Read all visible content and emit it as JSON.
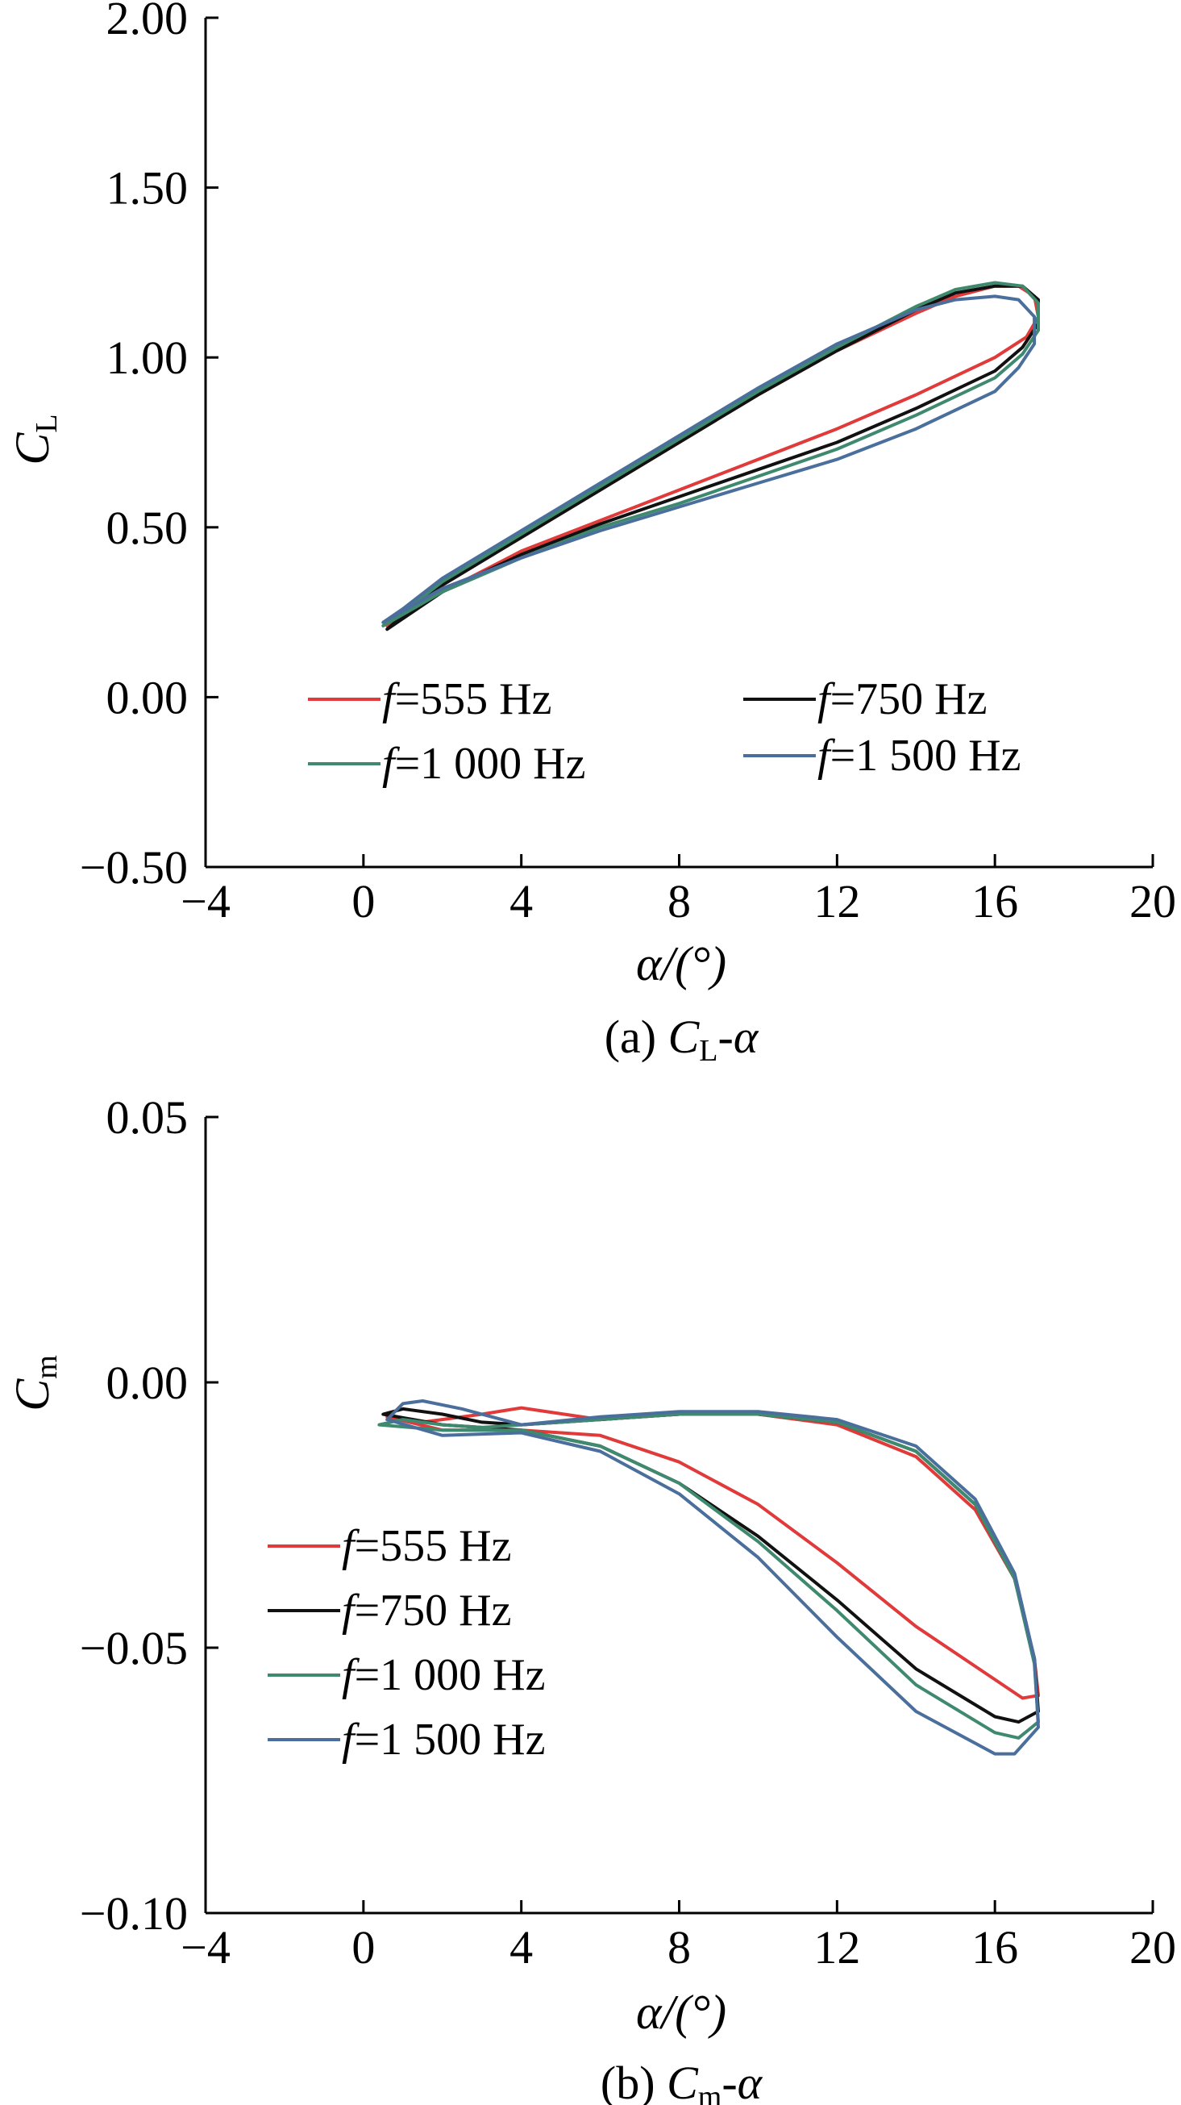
{
  "chart_data": [
    {
      "type": "line",
      "panel_caption": {
        "prefix": "(a) ",
        "var": "C",
        "sub": "L",
        "suffix": "-α"
      },
      "xlabel": "α/(°)",
      "ylabel": {
        "main": "C",
        "sub": "L"
      },
      "xlim": [
        -4,
        20
      ],
      "ylim": [
        -0.5,
        2.0
      ],
      "xticks": [
        "−4",
        "0",
        "4",
        "8",
        "12",
        "16",
        "20"
      ],
      "xtick_values": [
        -4,
        0,
        4,
        8,
        12,
        16,
        20
      ],
      "yticks": [
        "−0.50",
        "0.00",
        "0.50",
        "1.00",
        "1.50",
        "2.00"
      ],
      "ytick_values": [
        -0.5,
        0,
        0.5,
        1.0,
        1.5,
        2.0
      ],
      "legend_placement": "bottom-center, 2 columns",
      "series": [
        {
          "name": "555 Hz",
          "prefix": "f",
          "color": "#e03a3a",
          "points": [
            [
              0.6,
              0.21
            ],
            [
              1,
              0.25
            ],
            [
              2,
              0.33
            ],
            [
              4,
              0.47
            ],
            [
              6,
              0.61
            ],
            [
              8,
              0.75
            ],
            [
              10,
              0.89
            ],
            [
              12,
              1.02
            ],
            [
              14,
              1.13
            ],
            [
              15,
              1.18
            ],
            [
              16,
              1.21
            ],
            [
              16.6,
              1.21
            ],
            [
              17.0,
              1.18
            ],
            [
              17.1,
              1.12
            ],
            [
              16.8,
              1.06
            ],
            [
              16,
              1.0
            ],
            [
              14,
              0.89
            ],
            [
              12,
              0.79
            ],
            [
              10,
              0.7
            ],
            [
              8,
              0.61
            ],
            [
              6,
              0.52
            ],
            [
              4,
              0.43
            ],
            [
              2,
              0.31
            ],
            [
              0.6,
              0.21
            ]
          ]
        },
        {
          "name": "750 Hz",
          "prefix": "f",
          "color": "#111111",
          "points": [
            [
              0.6,
              0.2
            ],
            [
              1,
              0.24
            ],
            [
              2,
              0.33
            ],
            [
              4,
              0.47
            ],
            [
              6,
              0.61
            ],
            [
              8,
              0.75
            ],
            [
              10,
              0.89
            ],
            [
              12,
              1.02
            ],
            [
              14,
              1.14
            ],
            [
              15,
              1.19
            ],
            [
              16,
              1.21
            ],
            [
              16.7,
              1.21
            ],
            [
              17.1,
              1.17
            ],
            [
              17.1,
              1.1
            ],
            [
              16.7,
              1.03
            ],
            [
              16,
              0.96
            ],
            [
              14,
              0.85
            ],
            [
              12,
              0.75
            ],
            [
              10,
              0.67
            ],
            [
              8,
              0.59
            ],
            [
              6,
              0.51
            ],
            [
              4,
              0.42
            ],
            [
              2,
              0.31
            ],
            [
              0.6,
              0.2
            ]
          ]
        },
        {
          "name": "1 000 Hz",
          "prefix": "f",
          "color": "#3f8a6e",
          "points": [
            [
              0.5,
              0.21
            ],
            [
              1,
              0.25
            ],
            [
              2,
              0.34
            ],
            [
              4,
              0.48
            ],
            [
              6,
              0.62
            ],
            [
              8,
              0.76
            ],
            [
              10,
              0.9
            ],
            [
              12,
              1.03
            ],
            [
              14,
              1.15
            ],
            [
              15,
              1.2
            ],
            [
              16,
              1.22
            ],
            [
              16.7,
              1.21
            ],
            [
              17.1,
              1.16
            ],
            [
              17.1,
              1.08
            ],
            [
              16.7,
              1.01
            ],
            [
              16,
              0.94
            ],
            [
              14,
              0.83
            ],
            [
              12,
              0.73
            ],
            [
              10,
              0.65
            ],
            [
              8,
              0.57
            ],
            [
              6,
              0.5
            ],
            [
              4,
              0.41
            ],
            [
              2,
              0.31
            ],
            [
              0.5,
              0.21
            ]
          ]
        },
        {
          "name": "1 500 Hz",
          "prefix": "f",
          "color": "#4a6f9c",
          "points": [
            [
              0.5,
              0.22
            ],
            [
              1,
              0.26
            ],
            [
              2,
              0.35
            ],
            [
              4,
              0.49
            ],
            [
              6,
              0.63
            ],
            [
              8,
              0.77
            ],
            [
              10,
              0.91
            ],
            [
              12,
              1.04
            ],
            [
              14,
              1.14
            ],
            [
              15,
              1.17
            ],
            [
              16,
              1.18
            ],
            [
              16.6,
              1.17
            ],
            [
              17.0,
              1.12
            ],
            [
              17.0,
              1.04
            ],
            [
              16.6,
              0.97
            ],
            [
              16,
              0.9
            ],
            [
              14,
              0.79
            ],
            [
              12,
              0.7
            ],
            [
              10,
              0.63
            ],
            [
              8,
              0.56
            ],
            [
              6,
              0.49
            ],
            [
              4,
              0.41
            ],
            [
              2,
              0.32
            ],
            [
              0.5,
              0.22
            ]
          ]
        }
      ]
    },
    {
      "type": "line",
      "panel_caption": {
        "prefix": "(b) ",
        "var": "C",
        "sub": "m",
        "suffix": "-α"
      },
      "xlabel": "α/(°)",
      "ylabel": {
        "main": "C",
        "sub": "m"
      },
      "xlim": [
        -4,
        20
      ],
      "ylim": [
        -0.1,
        0.05
      ],
      "xticks": [
        "−4",
        "0",
        "4",
        "8",
        "12",
        "16",
        "20"
      ],
      "xtick_values": [
        -4,
        0,
        4,
        8,
        12,
        16,
        20
      ],
      "yticks": [
        "−0.10",
        "−0.05",
        "0.00",
        "0.05"
      ],
      "ytick_values": [
        -0.1,
        -0.05,
        0,
        0.05
      ],
      "legend_placement": "bottom-left, 1 column",
      "series": [
        {
          "name": "555 Hz",
          "prefix": "f",
          "color": "#e03a3a",
          "points": [
            [
              0.6,
              -0.0065
            ],
            [
              1.5,
              -0.0075
            ],
            [
              3,
              -0.006
            ],
            [
              4,
              -0.0048
            ],
            [
              6,
              -0.007
            ],
            [
              8,
              -0.006
            ],
            [
              10,
              -0.006
            ],
            [
              12,
              -0.008
            ],
            [
              14,
              -0.014
            ],
            [
              15.5,
              -0.024
            ],
            [
              16.5,
              -0.037
            ],
            [
              17.0,
              -0.052
            ],
            [
              17.1,
              -0.059
            ],
            [
              16.7,
              -0.0595
            ],
            [
              16,
              -0.056
            ],
            [
              14,
              -0.046
            ],
            [
              12,
              -0.034
            ],
            [
              10,
              -0.023
            ],
            [
              8,
              -0.015
            ],
            [
              6,
              -0.01
            ],
            [
              4,
              -0.009
            ],
            [
              2,
              -0.009
            ],
            [
              0.6,
              -0.0065
            ]
          ]
        },
        {
          "name": "750 Hz",
          "prefix": "f",
          "color": "#111111",
          "points": [
            [
              0.5,
              -0.006
            ],
            [
              1,
              -0.005
            ],
            [
              2,
              -0.006
            ],
            [
              3,
              -0.0075
            ],
            [
              4,
              -0.008
            ],
            [
              6,
              -0.007
            ],
            [
              8,
              -0.006
            ],
            [
              10,
              -0.006
            ],
            [
              12,
              -0.0075
            ],
            [
              14,
              -0.013
            ],
            [
              15.5,
              -0.023
            ],
            [
              16.5,
              -0.037
            ],
            [
              17.0,
              -0.052
            ],
            [
              17.1,
              -0.062
            ],
            [
              16.6,
              -0.064
            ],
            [
              16,
              -0.063
            ],
            [
              14,
              -0.054
            ],
            [
              12,
              -0.041
            ],
            [
              10,
              -0.029
            ],
            [
              8,
              -0.019
            ],
            [
              6,
              -0.012
            ],
            [
              4,
              -0.009
            ],
            [
              2,
              -0.008
            ],
            [
              0.5,
              -0.006
            ]
          ]
        },
        {
          "name": "1 000 Hz",
          "prefix": "f",
          "color": "#3f8a6e",
          "points": [
            [
              0.4,
              -0.008
            ],
            [
              1,
              -0.007
            ],
            [
              2,
              -0.008
            ],
            [
              3,
              -0.0085
            ],
            [
              4,
              -0.008
            ],
            [
              6,
              -0.007
            ],
            [
              8,
              -0.006
            ],
            [
              10,
              -0.006
            ],
            [
              12,
              -0.0075
            ],
            [
              14,
              -0.013
            ],
            [
              15.5,
              -0.023
            ],
            [
              16.5,
              -0.037
            ],
            [
              17.0,
              -0.053
            ],
            [
              17.1,
              -0.064
            ],
            [
              16.6,
              -0.067
            ],
            [
              16,
              -0.066
            ],
            [
              14,
              -0.057
            ],
            [
              12,
              -0.043
            ],
            [
              10,
              -0.03
            ],
            [
              8,
              -0.019
            ],
            [
              6,
              -0.012
            ],
            [
              4,
              -0.009
            ],
            [
              2,
              -0.009
            ],
            [
              0.4,
              -0.008
            ]
          ]
        },
        {
          "name": "1 500 Hz",
          "prefix": "f",
          "color": "#4a6f9c",
          "points": [
            [
              0.6,
              -0.007
            ],
            [
              1,
              -0.004
            ],
            [
              1.5,
              -0.0035
            ],
            [
              2.5,
              -0.005
            ],
            [
              4,
              -0.008
            ],
            [
              6,
              -0.0065
            ],
            [
              8,
              -0.0055
            ],
            [
              10,
              -0.0055
            ],
            [
              12,
              -0.007
            ],
            [
              14,
              -0.012
            ],
            [
              15.5,
              -0.022
            ],
            [
              16.5,
              -0.036
            ],
            [
              17.0,
              -0.052
            ],
            [
              17.1,
              -0.065
            ],
            [
              16.5,
              -0.07
            ],
            [
              16,
              -0.07
            ],
            [
              14,
              -0.062
            ],
            [
              12,
              -0.048
            ],
            [
              10,
              -0.033
            ],
            [
              8,
              -0.021
            ],
            [
              6,
              -0.013
            ],
            [
              4,
              -0.0095
            ],
            [
              2,
              -0.01
            ],
            [
              0.6,
              -0.007
            ]
          ]
        }
      ]
    }
  ]
}
